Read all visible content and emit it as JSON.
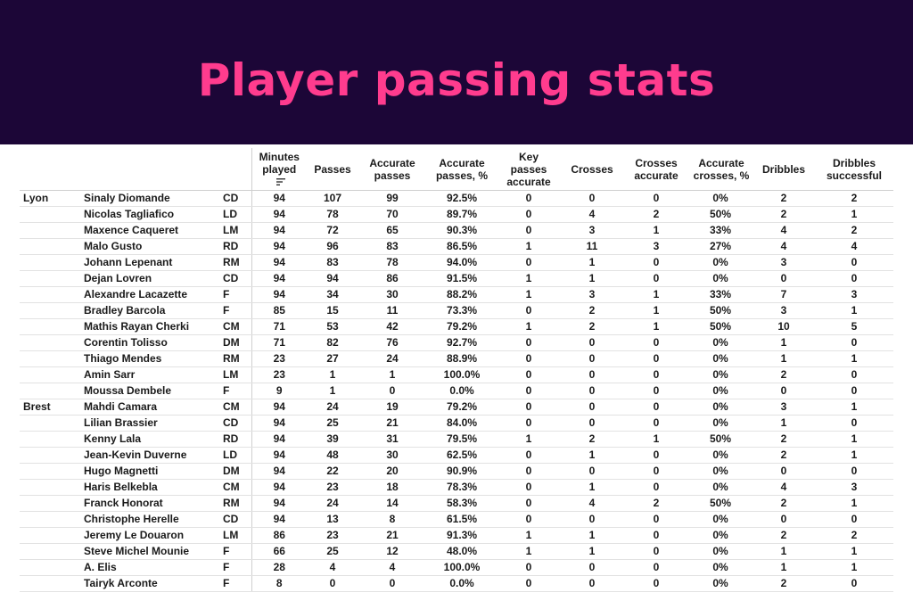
{
  "title": "Player passing stats",
  "colors": {
    "header_bg": "#1c0637",
    "title": "#ff3c8e"
  },
  "columns": [
    "Minutes played",
    "Passes",
    "Accurate passes",
    "Accurate passes, %",
    "Key passes accurate",
    "Crosses",
    "Crosses accurate",
    "Accurate crosses, %",
    "Dribbles",
    "Dribbles successful"
  ],
  "sort_icon": "sort-descending-icon",
  "rows": [
    [
      "Lyon",
      "Sinaly Diomande",
      "CD",
      "94",
      "107",
      "99",
      "92.5%",
      "0",
      "0",
      "0",
      "0%",
      "2",
      "2"
    ],
    [
      "",
      "Nicolas Tagliafico",
      "LD",
      "94",
      "78",
      "70",
      "89.7%",
      "0",
      "4",
      "2",
      "50%",
      "2",
      "1"
    ],
    [
      "",
      "Maxence Caqueret",
      "LM",
      "94",
      "72",
      "65",
      "90.3%",
      "0",
      "3",
      "1",
      "33%",
      "4",
      "2"
    ],
    [
      "",
      "Malo Gusto",
      "RD",
      "94",
      "96",
      "83",
      "86.5%",
      "1",
      "11",
      "3",
      "27%",
      "4",
      "4"
    ],
    [
      "",
      "Johann Lepenant",
      "RM",
      "94",
      "83",
      "78",
      "94.0%",
      "0",
      "1",
      "0",
      "0%",
      "3",
      "0"
    ],
    [
      "",
      "Dejan Lovren",
      "CD",
      "94",
      "94",
      "86",
      "91.5%",
      "1",
      "1",
      "0",
      "0%",
      "0",
      "0"
    ],
    [
      "",
      "Alexandre Lacazette",
      "F",
      "94",
      "34",
      "30",
      "88.2%",
      "1",
      "3",
      "1",
      "33%",
      "7",
      "3"
    ],
    [
      "",
      "Bradley Barcola",
      "F",
      "85",
      "15",
      "11",
      "73.3%",
      "0",
      "2",
      "1",
      "50%",
      "3",
      "1"
    ],
    [
      "",
      "Mathis Rayan Cherki",
      "CM",
      "71",
      "53",
      "42",
      "79.2%",
      "1",
      "2",
      "1",
      "50%",
      "10",
      "5"
    ],
    [
      "",
      "Corentin Tolisso",
      "DM",
      "71",
      "82",
      "76",
      "92.7%",
      "0",
      "0",
      "0",
      "0%",
      "1",
      "0"
    ],
    [
      "",
      "Thiago Mendes",
      "RM",
      "23",
      "27",
      "24",
      "88.9%",
      "0",
      "0",
      "0",
      "0%",
      "1",
      "1"
    ],
    [
      "",
      "Amin Sarr",
      "LM",
      "23",
      "1",
      "1",
      "100.0%",
      "0",
      "0",
      "0",
      "0%",
      "2",
      "0"
    ],
    [
      "",
      "Moussa Dembele",
      "F",
      "9",
      "1",
      "0",
      "0.0%",
      "0",
      "0",
      "0",
      "0%",
      "0",
      "0"
    ],
    [
      "Brest",
      "Mahdi Camara",
      "CM",
      "94",
      "24",
      "19",
      "79.2%",
      "0",
      "0",
      "0",
      "0%",
      "3",
      "1"
    ],
    [
      "",
      "Lilian Brassier",
      "CD",
      "94",
      "25",
      "21",
      "84.0%",
      "0",
      "0",
      "0",
      "0%",
      "1",
      "0"
    ],
    [
      "",
      "Kenny Lala",
      "RD",
      "94",
      "39",
      "31",
      "79.5%",
      "1",
      "2",
      "1",
      "50%",
      "2",
      "1"
    ],
    [
      "",
      "Jean-Kevin Duverne",
      "LD",
      "94",
      "48",
      "30",
      "62.5%",
      "0",
      "1",
      "0",
      "0%",
      "2",
      "1"
    ],
    [
      "",
      "Hugo Magnetti",
      "DM",
      "94",
      "22",
      "20",
      "90.9%",
      "0",
      "0",
      "0",
      "0%",
      "0",
      "0"
    ],
    [
      "",
      "Haris Belkebla",
      "CM",
      "94",
      "23",
      "18",
      "78.3%",
      "0",
      "1",
      "0",
      "0%",
      "4",
      "3"
    ],
    [
      "",
      "Franck Honorat",
      "RM",
      "94",
      "24",
      "14",
      "58.3%",
      "0",
      "4",
      "2",
      "50%",
      "2",
      "1"
    ],
    [
      "",
      "Christophe Herelle",
      "CD",
      "94",
      "13",
      "8",
      "61.5%",
      "0",
      "0",
      "0",
      "0%",
      "0",
      "0"
    ],
    [
      "",
      "Jeremy Le Douaron",
      "LM",
      "86",
      "23",
      "21",
      "91.3%",
      "1",
      "1",
      "0",
      "0%",
      "2",
      "2"
    ],
    [
      "",
      "Steve Michel Mounie",
      "F",
      "66",
      "25",
      "12",
      "48.0%",
      "1",
      "1",
      "0",
      "0%",
      "1",
      "1"
    ],
    [
      "",
      "A. Elis",
      "F",
      "28",
      "4",
      "4",
      "100.0%",
      "0",
      "0",
      "0",
      "0%",
      "1",
      "1"
    ],
    [
      "",
      "Tairyk Arconte",
      "F",
      "8",
      "0",
      "0",
      "0.0%",
      "0",
      "0",
      "0",
      "0%",
      "2",
      "0"
    ]
  ]
}
